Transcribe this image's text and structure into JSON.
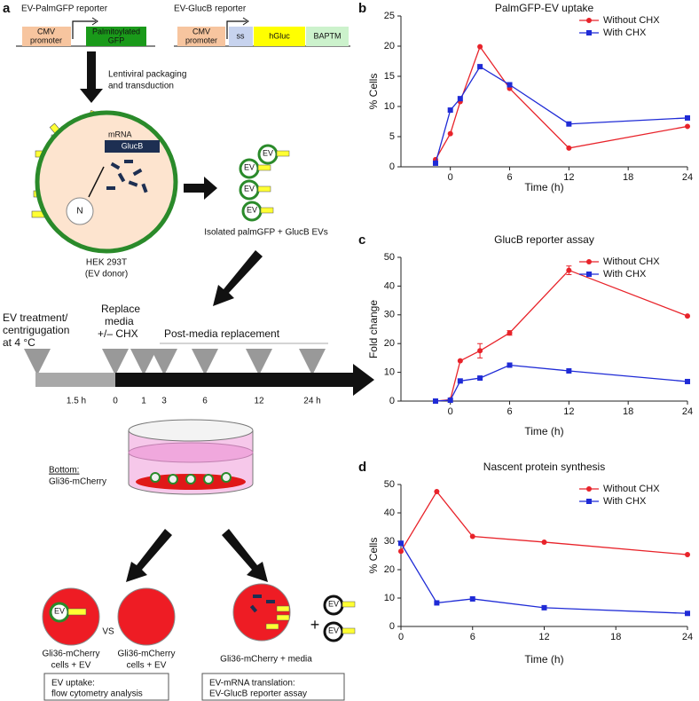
{
  "diagram": {
    "panel": "a",
    "palm_title": "EV-PalmGFP reporter",
    "gluc_title": "EV-GlucB reporter",
    "cmv": [
      "CMV",
      "promoter"
    ],
    "palm_gene": [
      "Palmitoylated",
      "GFP"
    ],
    "ss": "ss",
    "hgluc": "hGluc",
    "baptm": "BAPTM",
    "lenti": [
      "Lentiviral packaging",
      "and transduction"
    ],
    "mrna": "mRNA",
    "glucb": "GlucB",
    "nucleus": "N",
    "donor": [
      "HEK 293T",
      "(EV donor)"
    ],
    "ev": "EV",
    "isolated": "Isolated palmGFP + GlucB EVs",
    "treatment": [
      "EV treatment/",
      "centrigugation",
      "at 4 °C"
    ],
    "replace": [
      "Replace",
      "media",
      "+/– CHX"
    ],
    "post": "Post-media replacement",
    "times": [
      "1.5 h",
      "0",
      "1",
      "3",
      "6",
      "12",
      "24 h"
    ],
    "bottom": "Bottom:",
    "dish_cells": "Gli36-mCherry",
    "vs": "VS",
    "plus": "+",
    "cells_ev": [
      "Gli36-mCherry",
      "cells + EV"
    ],
    "cells_media": "Gli36-mCherry + media",
    "box1": [
      "EV uptake:",
      "flow cytometry analysis"
    ],
    "box2": [
      "EV-mRNA translation:",
      "EV-GlucB reporter assay"
    ]
  },
  "chart_data": [
    {
      "type": "line",
      "panel": "b",
      "title": "PalmGFP-EV uptake",
      "xlabel": "Time (h)",
      "ylabel": "% Cells",
      "x": [
        -1.5,
        0,
        1,
        3,
        6,
        12,
        24
      ],
      "xlim": [
        -5,
        24
      ],
      "xticks": [
        0,
        6,
        12,
        18,
        24
      ],
      "ylim": [
        0,
        25
      ],
      "yticks": [
        0,
        5,
        10,
        15,
        20,
        25
      ],
      "legend": "upper right",
      "series": [
        {
          "name": "Without CHX",
          "color": "#e8232a",
          "marker": "circle",
          "values": [
            1.2,
            5.5,
            10.8,
            19.9,
            13.0,
            3.1,
            6.7
          ]
        },
        {
          "name": "With CHX",
          "color": "#1f2bd6",
          "marker": "square",
          "values": [
            0.6,
            9.4,
            11.3,
            16.6,
            13.6,
            7.1,
            8.1
          ]
        }
      ]
    },
    {
      "type": "line",
      "panel": "c",
      "title": "GlucB reporter assay",
      "xlabel": "Time (h)",
      "ylabel": "Fold change",
      "x": [
        -1.5,
        0,
        1,
        3,
        6,
        12,
        24
      ],
      "xlim": [
        -5,
        24
      ],
      "xticks": [
        0,
        6,
        12,
        18,
        24
      ],
      "ylim": [
        0,
        50
      ],
      "yticks": [
        0,
        10,
        20,
        30,
        40,
        50
      ],
      "legend": "upper right",
      "series": [
        {
          "name": "Without CHX",
          "color": "#e8232a",
          "marker": "circle",
          "values": [
            0,
            0.5,
            14,
            17.5,
            23.7,
            45.5,
            29.6
          ],
          "errors": [
            null,
            null,
            null,
            2.5,
            0.8,
            1.5,
            null
          ]
        },
        {
          "name": "With CHX",
          "color": "#1f2bd6",
          "marker": "square",
          "values": [
            0,
            0.3,
            7,
            8,
            12.5,
            10.5,
            6.8
          ]
        }
      ]
    },
    {
      "type": "line",
      "panel": "d",
      "title": "Nascent protein synthesis",
      "xlabel": "Time (h)",
      "ylabel": "% Cells",
      "x": [
        0,
        3,
        6,
        12,
        24
      ],
      "xlim": [
        0,
        24
      ],
      "xticks": [
        0,
        6,
        12,
        18,
        24
      ],
      "ylim": [
        0,
        50
      ],
      "yticks": [
        0,
        10,
        20,
        30,
        40,
        50
      ],
      "legend": "upper right",
      "series": [
        {
          "name": "Without CHX",
          "color": "#e8232a",
          "marker": "circle",
          "values": [
            26.5,
            47.5,
            31.7,
            29.7,
            25.3
          ]
        },
        {
          "name": "With CHX",
          "color": "#1f2bd6",
          "marker": "square",
          "values": [
            29.3,
            8.3,
            9.7,
            6.6,
            4.6
          ]
        }
      ]
    }
  ]
}
